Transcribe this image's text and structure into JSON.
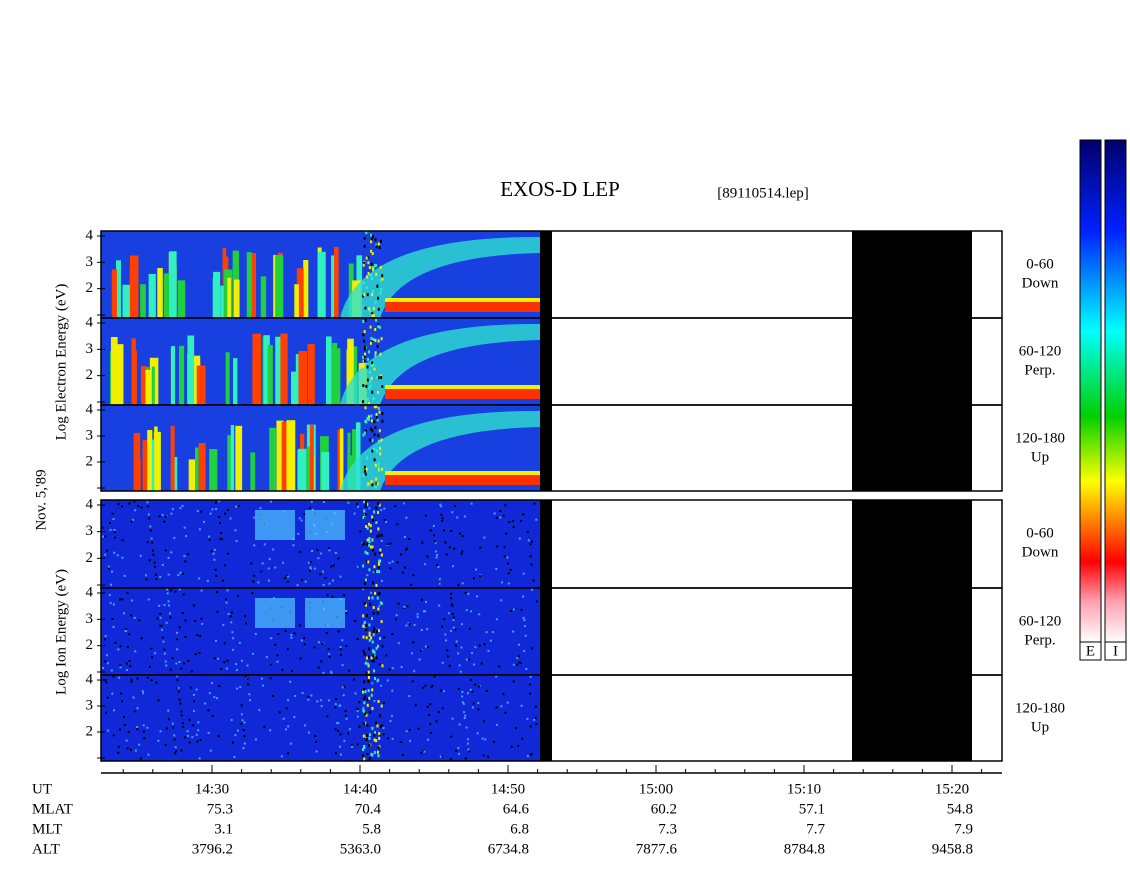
{
  "title": "EXOS-D LEP",
  "file": "[89110514.lep]",
  "date": "Nov. 5,'89",
  "electron_label": "Log Electron Energy (eV)",
  "ion_label": "Log Ion Energy (eV)",
  "energy_ticks": [
    2,
    3,
    4
  ],
  "pitch_labels": [
    [
      "0-60",
      "Down"
    ],
    [
      "60-120",
      "Perp."
    ],
    [
      "120-180",
      "Up"
    ]
  ],
  "colorbar_labels": [
    "E",
    "I"
  ],
  "ephemeris": [
    {
      "name": "UT",
      "values": [
        "14:30",
        "14:40",
        "14:50",
        "15:00",
        "15:10",
        "15:20"
      ]
    },
    {
      "name": "MLAT",
      "values": [
        "75.3",
        "70.4",
        "64.6",
        "60.2",
        "57.1",
        "54.8"
      ]
    },
    {
      "name": "MLT",
      "values": [
        "3.1",
        "5.8",
        "6.8",
        "7.3",
        "7.7",
        "7.9"
      ]
    },
    {
      "name": "ALT",
      "values": [
        "3796.2",
        "5363.0",
        "6734.8",
        "7877.6",
        "8784.8",
        "9458.8"
      ]
    }
  ]
}
